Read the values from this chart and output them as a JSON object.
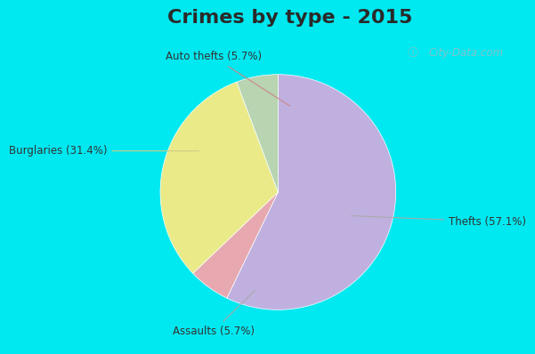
{
  "title": "Crimes by type - 2015",
  "slices": [
    {
      "label": "Thefts (57.1%)",
      "value": 57.1,
      "color": "#c0b0e0"
    },
    {
      "label": "Auto thefts (5.7%)",
      "value": 5.7,
      "color": "#e8a8b0"
    },
    {
      "label": "Burglaries (31.4%)",
      "value": 31.4,
      "color": "#eaea88"
    },
    {
      "label": "Assaults (5.7%)",
      "value": 5.7,
      "color": "#b8d4b0"
    }
  ],
  "start_angle": 90,
  "title_fontsize": 16,
  "label_fontsize": 8.5,
  "fig_bg_color": "#00e8f0",
  "plot_bg_color": "#e0f4ee",
  "watermark_text": "City-Data.com",
  "wedge_linewidth": 0.5,
  "wedge_edgecolor": "#ffffff",
  "label_color": "#333333",
  "line_color": "#cc8888",
  "title_color": "#2a2a2a"
}
